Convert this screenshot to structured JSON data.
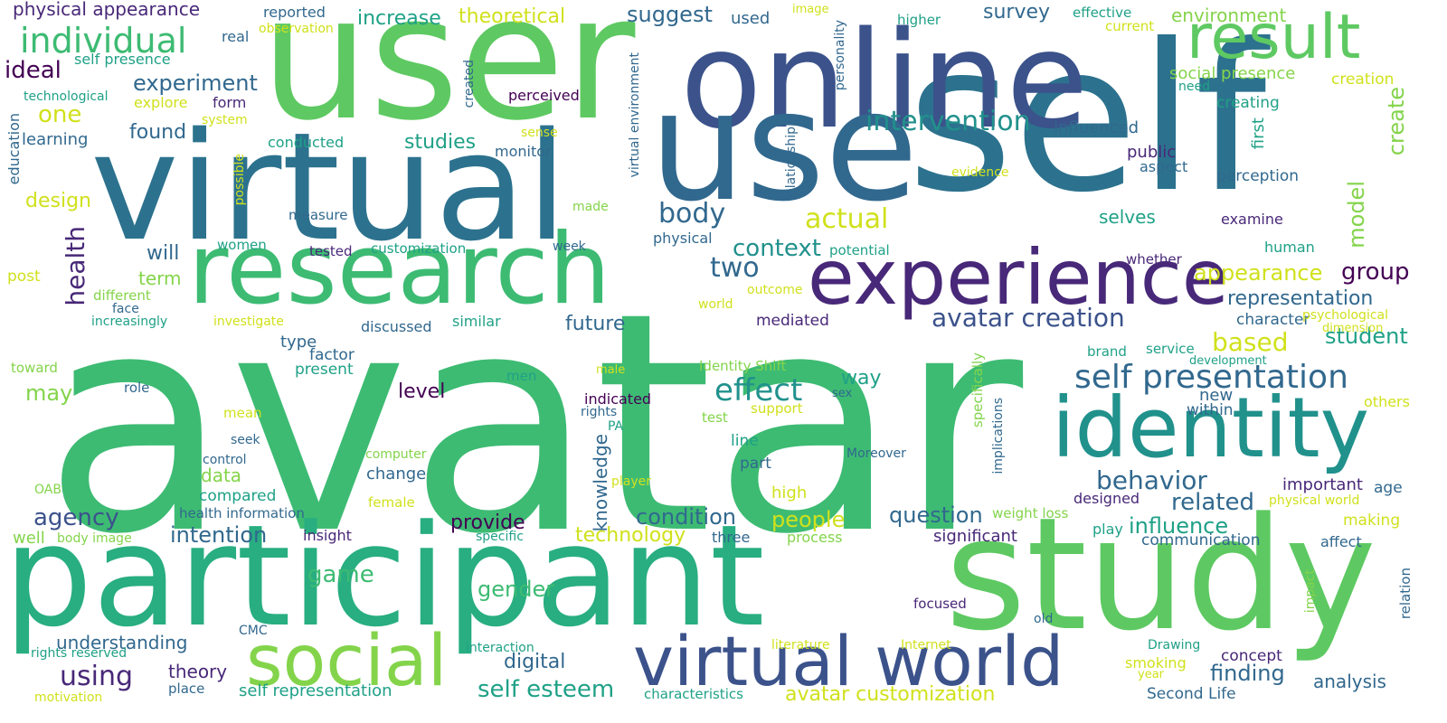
{
  "title": "Word cloud",
  "palette": {
    "c1": "#3dbb73",
    "c2": "#5ec962",
    "c3": "#2c728e",
    "c4": "#3b528b",
    "c5": "#472d7b",
    "c6": "#21918c",
    "c7": "#28ae80",
    "c8": "#addc30",
    "c9": "#d0e11c",
    "c10": "#fde725",
    "c11": "#440154",
    "c12": "#31688e",
    "c13": "#1fa187",
    "c14": "#84d44b",
    "c15": "#482878"
  },
  "words": [
    {
      "text": "avatar",
      "color": "c1"
    },
    {
      "text": "user",
      "color": "c2"
    },
    {
      "text": "self",
      "color": "c3"
    },
    {
      "text": "online",
      "color": "c4"
    },
    {
      "text": "virtual",
      "color": "c3"
    },
    {
      "text": "use",
      "color": "c12"
    },
    {
      "text": "participant",
      "color": "c7"
    },
    {
      "text": "study",
      "color": "c2"
    },
    {
      "text": "research",
      "color": "c1"
    },
    {
      "text": "experience",
      "color": "c15"
    },
    {
      "text": "identity",
      "color": "c6"
    },
    {
      "text": "result",
      "color": "c2"
    },
    {
      "text": "social",
      "color": "c14"
    },
    {
      "text": "virtual world",
      "color": "c4"
    },
    {
      "text": "self presentation",
      "color": "c12"
    },
    {
      "text": "individual",
      "color": "c1"
    },
    {
      "text": "intervention",
      "color": "c6"
    },
    {
      "text": "avatar creation",
      "color": "c4"
    },
    {
      "text": "effect",
      "color": "c6"
    },
    {
      "text": "behavior",
      "color": "c12"
    },
    {
      "text": "body",
      "color": "c12"
    },
    {
      "text": "actual",
      "color": "c9"
    },
    {
      "text": "context",
      "color": "c6"
    },
    {
      "text": "two",
      "color": "c12"
    },
    {
      "text": "appearance",
      "color": "c9"
    },
    {
      "text": "group",
      "color": "c11"
    },
    {
      "text": "representation",
      "color": "c12"
    },
    {
      "text": "based",
      "color": "c9"
    },
    {
      "text": "student",
      "color": "c13"
    },
    {
      "text": "related",
      "color": "c12"
    },
    {
      "text": "influence",
      "color": "c13"
    },
    {
      "text": "question",
      "color": "c12"
    },
    {
      "text": "condition",
      "color": "c12"
    },
    {
      "text": "people",
      "color": "c9"
    },
    {
      "text": "technology",
      "color": "c9"
    },
    {
      "text": "gender",
      "color": "c1"
    },
    {
      "text": "game",
      "color": "c1"
    },
    {
      "text": "agency",
      "color": "c4"
    },
    {
      "text": "intention",
      "color": "c12"
    },
    {
      "text": "provide",
      "color": "c11"
    },
    {
      "text": "using",
      "color": "c15"
    },
    {
      "text": "self esteem",
      "color": "c13"
    },
    {
      "text": "finding",
      "color": "c12"
    },
    {
      "text": "avatar customization",
      "color": "c9"
    },
    {
      "text": "digital",
      "color": "c12"
    },
    {
      "text": "theory",
      "color": "c15"
    },
    {
      "text": "understanding",
      "color": "c12"
    },
    {
      "text": "self representation",
      "color": "c13"
    },
    {
      "text": "experiment",
      "color": "c12"
    },
    {
      "text": "one",
      "color": "c9"
    },
    {
      "text": "ideal",
      "color": "c11"
    },
    {
      "text": "health",
      "color": "c15"
    },
    {
      "text": "suggest",
      "color": "c12"
    },
    {
      "text": "survey",
      "color": "c12"
    },
    {
      "text": "increase",
      "color": "c13"
    },
    {
      "text": "theoretical",
      "color": "c9"
    },
    {
      "text": "environment",
      "color": "c14"
    },
    {
      "text": "physical appearance",
      "color": "c15"
    },
    {
      "text": "studies",
      "color": "c13"
    },
    {
      "text": "found",
      "color": "c12"
    },
    {
      "text": "may",
      "color": "c14"
    },
    {
      "text": "level",
      "color": "c11"
    },
    {
      "text": "future",
      "color": "c12"
    },
    {
      "text": "design",
      "color": "c9"
    },
    {
      "text": "will",
      "color": "c12"
    },
    {
      "text": "term",
      "color": "c14"
    },
    {
      "text": "way",
      "color": "c13"
    },
    {
      "text": "create",
      "color": "c14"
    },
    {
      "text": "model",
      "color": "c14"
    },
    {
      "text": "selves",
      "color": "c13"
    },
    {
      "text": "influenced",
      "color": "c12"
    },
    {
      "text": "social presence",
      "color": "c14"
    },
    {
      "text": "creation",
      "color": "c9"
    },
    {
      "text": "creating",
      "color": "c13"
    },
    {
      "text": "perception",
      "color": "c12"
    },
    {
      "text": "public",
      "color": "c15"
    },
    {
      "text": "aspect",
      "color": "c12"
    },
    {
      "text": "examine",
      "color": "c15"
    },
    {
      "text": "first",
      "color": "c13"
    },
    {
      "text": "human",
      "color": "c13"
    },
    {
      "text": "whether",
      "color": "c15"
    },
    {
      "text": "character",
      "color": "c12"
    },
    {
      "text": "mediated",
      "color": "c15"
    },
    {
      "text": "type",
      "color": "c12"
    },
    {
      "text": "factor",
      "color": "c12"
    },
    {
      "text": "present",
      "color": "c13"
    },
    {
      "text": "data",
      "color": "c14"
    },
    {
      "text": "compared",
      "color": "c13"
    },
    {
      "text": "change",
      "color": "c12"
    },
    {
      "text": "high",
      "color": "c9"
    },
    {
      "text": "part",
      "color": "c12"
    },
    {
      "text": "line",
      "color": "c13"
    },
    {
      "text": "knowledge",
      "color": "c12"
    },
    {
      "text": "new",
      "color": "c12"
    },
    {
      "text": "within",
      "color": "c12"
    },
    {
      "text": "others",
      "color": "c9"
    },
    {
      "text": "important",
      "color": "c15"
    },
    {
      "text": "age",
      "color": "c12"
    },
    {
      "text": "designed",
      "color": "c15"
    },
    {
      "text": "making",
      "color": "c9"
    },
    {
      "text": "significant",
      "color": "c15"
    },
    {
      "text": "communication",
      "color": "c12"
    },
    {
      "text": "affect",
      "color": "c12"
    },
    {
      "text": "play",
      "color": "c13"
    },
    {
      "text": "concept",
      "color": "c15"
    },
    {
      "text": "analysis",
      "color": "c12"
    },
    {
      "text": "Second Life",
      "color": "c12"
    },
    {
      "text": "process",
      "color": "c14"
    },
    {
      "text": "three",
      "color": "c12"
    },
    {
      "text": "learning",
      "color": "c12"
    },
    {
      "text": "education",
      "color": "c12"
    },
    {
      "text": "conducted",
      "color": "c13"
    },
    {
      "text": "monitor",
      "color": "c12"
    },
    {
      "text": "used",
      "color": "c12"
    },
    {
      "text": "reported",
      "color": "c12"
    },
    {
      "text": "real",
      "color": "c12"
    },
    {
      "text": "observation",
      "color": "c9"
    },
    {
      "text": "image",
      "color": "c9"
    },
    {
      "text": "higher",
      "color": "c13"
    },
    {
      "text": "effective",
      "color": "c13"
    },
    {
      "text": "current",
      "color": "c9"
    },
    {
      "text": "need",
      "color": "c13"
    },
    {
      "text": "self presence",
      "color": "c13"
    },
    {
      "text": "technological",
      "color": "c13"
    },
    {
      "text": "explore",
      "color": "c9"
    },
    {
      "text": "form",
      "color": "c15"
    },
    {
      "text": "system",
      "color": "c9"
    },
    {
      "text": "perceived",
      "color": "c11"
    },
    {
      "text": "created",
      "color": "c12"
    },
    {
      "text": "sense",
      "color": "c9"
    },
    {
      "text": "personality",
      "color": "c12"
    },
    {
      "text": "virtual environment",
      "color": "c12"
    },
    {
      "text": "relationship",
      "color": "c12"
    },
    {
      "text": "evidence",
      "color": "c9"
    },
    {
      "text": "made",
      "color": "c14"
    },
    {
      "text": "possible",
      "color": "c9"
    },
    {
      "text": "measure",
      "color": "c12"
    },
    {
      "text": "women",
      "color": "c13"
    },
    {
      "text": "tested",
      "color": "c15"
    },
    {
      "text": "customization",
      "color": "c13"
    },
    {
      "text": "week",
      "color": "c12"
    },
    {
      "text": "physical",
      "color": "c12"
    },
    {
      "text": "potential",
      "color": "c13"
    },
    {
      "text": "post",
      "color": "c9"
    },
    {
      "text": "different",
      "color": "c14"
    },
    {
      "text": "face",
      "color": "c12"
    },
    {
      "text": "increasingly",
      "color": "c13"
    },
    {
      "text": "investigate",
      "color": "c9"
    },
    {
      "text": "discussed",
      "color": "c12"
    },
    {
      "text": "similar",
      "color": "c13"
    },
    {
      "text": "outcome",
      "color": "c9"
    },
    {
      "text": "world",
      "color": "c9"
    },
    {
      "text": "psychological",
      "color": "c9"
    },
    {
      "text": "dimension",
      "color": "c9"
    },
    {
      "text": "development",
      "color": "c13"
    },
    {
      "text": "service",
      "color": "c13"
    },
    {
      "text": "brand",
      "color": "c13"
    },
    {
      "text": "toward",
      "color": "c14"
    },
    {
      "text": "role",
      "color": "c12"
    },
    {
      "text": "men",
      "color": "c13"
    },
    {
      "text": "male",
      "color": "c9"
    },
    {
      "text": "Identity Shift",
      "color": "c14"
    },
    {
      "text": "indicated",
      "color": "c11"
    },
    {
      "text": "rights",
      "color": "c12"
    },
    {
      "text": "PA",
      "color": "c13"
    },
    {
      "text": "sex",
      "color": "c12"
    },
    {
      "text": "support",
      "color": "c9"
    },
    {
      "text": "test",
      "color": "c14"
    },
    {
      "text": "specifically",
      "color": "c14"
    },
    {
      "text": "implications",
      "color": "c12"
    },
    {
      "text": "mean",
      "color": "c9"
    },
    {
      "text": "seek",
      "color": "c12"
    },
    {
      "text": "control",
      "color": "c12"
    },
    {
      "text": "computer",
      "color": "c14"
    },
    {
      "text": "Moreover",
      "color": "c12"
    },
    {
      "text": "OAB",
      "color": "c14"
    },
    {
      "text": "female",
      "color": "c9"
    },
    {
      "text": "player",
      "color": "c9"
    },
    {
      "text": "health information",
      "color": "c12"
    },
    {
      "text": "body image",
      "color": "c14"
    },
    {
      "text": "well",
      "color": "c14"
    },
    {
      "text": "insight",
      "color": "c15"
    },
    {
      "text": "specific",
      "color": "c13"
    },
    {
      "text": "weight loss",
      "color": "c14"
    },
    {
      "text": "physical world",
      "color": "c9"
    },
    {
      "text": "impact",
      "color": "c14"
    },
    {
      "text": "relation",
      "color": "c12"
    },
    {
      "text": "focused",
      "color": "c15"
    },
    {
      "text": "old",
      "color": "c12"
    },
    {
      "text": "CMC",
      "color": "c12"
    },
    {
      "text": "rights reserved",
      "color": "c13"
    },
    {
      "text": "interaction",
      "color": "c13"
    },
    {
      "text": "literature",
      "color": "c9"
    },
    {
      "text": "Internet",
      "color": "c9"
    },
    {
      "text": "Drawing",
      "color": "c13"
    },
    {
      "text": "smoking",
      "color": "c9"
    },
    {
      "text": "year",
      "color": "c9"
    },
    {
      "text": "place",
      "color": "c12"
    },
    {
      "text": "motivation",
      "color": "c9"
    },
    {
      "text": "characteristics",
      "color": "c13"
    }
  ]
}
